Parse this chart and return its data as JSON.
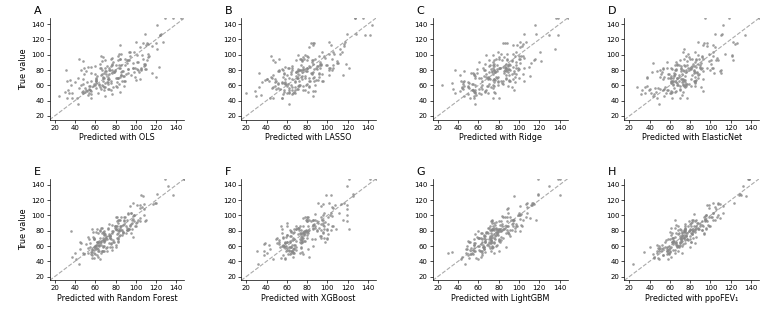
{
  "seed": 42,
  "n_points": 220,
  "xlim": [
    15,
    148
  ],
  "ylim": [
    15,
    148
  ],
  "xticks": [
    20,
    40,
    60,
    80,
    100,
    120,
    140
  ],
  "yticks": [
    20,
    40,
    60,
    80,
    100,
    120,
    140
  ],
  "ylabel": "True value",
  "panels": [
    {
      "label": "A",
      "xlabel": "Predicted with OLS",
      "r": 0.72,
      "noise": 15
    },
    {
      "label": "B",
      "xlabel": "Predicted with LASSO",
      "r": 0.68,
      "noise": 17
    },
    {
      "label": "C",
      "xlabel": "Predicted with Ridge",
      "r": 0.71,
      "noise": 15
    },
    {
      "label": "D",
      "xlabel": "Predicted with ElasticNet",
      "r": 0.71,
      "noise": 15
    },
    {
      "label": "E",
      "xlabel": "Predicted with Random Forest",
      "r": 0.8,
      "noise": 11
    },
    {
      "label": "F",
      "xlabel": "Predicted with XGBoost",
      "r": 0.76,
      "noise": 13
    },
    {
      "label": "G",
      "xlabel": "Predicted with LightGBM",
      "r": 0.82,
      "noise": 10
    },
    {
      "label": "H",
      "xlabel": "Predicted with ppoFEV₁",
      "r": 0.88,
      "noise": 8
    }
  ],
  "dot_color": "#878787",
  "dot_size": 3.5,
  "dot_alpha": 0.8,
  "line_color": "#aaaaaa",
  "line_width": 0.8,
  "figure_width": 7.63,
  "figure_height": 3.28,
  "dpi": 100,
  "label_fontsize": 8,
  "tick_fontsize": 5,
  "axis_label_fontsize": 5.8
}
